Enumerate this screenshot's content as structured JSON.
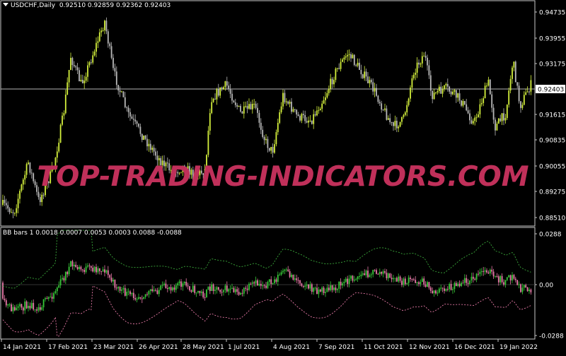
{
  "main_chart": {
    "symbol": "USDCHF,Daily",
    "ohlc_text": "0.92510 0.92859 0.92362 0.92403",
    "current_price": "0.92403",
    "price_ticks": [
      "0.94735",
      "0.93955",
      "0.93175",
      "0.92403",
      "0.91615",
      "0.90835",
      "0.90055",
      "0.89275",
      "0.88510"
    ],
    "colors": {
      "up": "#d4f03c",
      "down": "#b9b9b9",
      "bg": "#000000",
      "grid_border": "#c8c8c8"
    }
  },
  "indicator": {
    "label": "BB bars 1 0.0018 0.0007 0.0053 0.0003 0.0088 -0.0088",
    "ticks": [
      "0.0288",
      "0.00",
      "-0.0288"
    ],
    "colors": {
      "up": "#38c838",
      "down": "#e87aa8",
      "upper_band": "#3aa83a",
      "lower_band": "#e87aa8"
    }
  },
  "time_axis": [
    "14 Jan 2021",
    "17 Feb 2021",
    "23 Mar 2021",
    "26 Apr 2021",
    "28 May 2021",
    "1 Jul 2021",
    "4 Aug 2021",
    "7 Sep 2021",
    "11 Oct 2021",
    "12 Nov 2021",
    "16 Dec 2021",
    "19 Jan 2022"
  ],
  "watermark": "TOP-TRADING-INDICATORS.COM"
}
